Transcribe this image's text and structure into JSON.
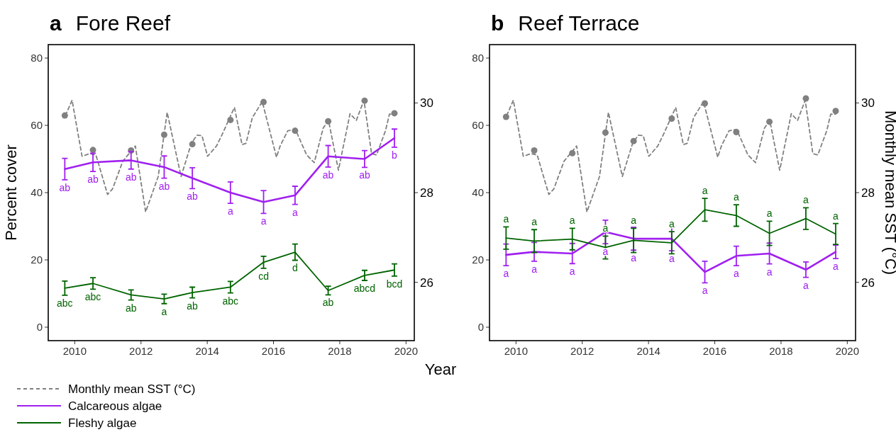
{
  "chart_data": [
    {
      "type": "line",
      "title": "a Fore Reef",
      "xlabel": "Year",
      "ylabel": "Percent cover",
      "xlim": [
        2009.2,
        2020.25
      ],
      "xticks": [
        2010,
        2012,
        2014,
        2016,
        2018,
        2020
      ],
      "ylim": [
        -4,
        84
      ],
      "yticks": [
        0,
        20,
        40,
        60,
        80
      ],
      "y2lim": [
        24.7,
        31.3
      ],
      "y2ticks": [
        26,
        28,
        30
      ],
      "grid": false,
      "legend": "bottom left",
      "x": [
        2009.7,
        2010.55,
        2011.7,
        2012.7,
        2013.55,
        2014.7,
        2015.7,
        2016.65,
        2017.65,
        2018.75,
        2019.65
      ],
      "series": [
        {
          "name": "Monthly mean SST (°C)",
          "type": "line",
          "axis": "y2",
          "color": "#808080",
          "line_style": "dashed",
          "marker": "none",
          "x": [
            2009.72,
            2009.92,
            2010.22,
            2010.45,
            2010.64,
            2010.99,
            2011.14,
            2011.45,
            2011.83,
            2012.14,
            2012.52,
            2012.79,
            2013.21,
            2013.52,
            2013.69,
            2013.84,
            2014.01,
            2014.28,
            2014.44,
            2014.82,
            2015.05,
            2015.17,
            2015.36,
            2015.66,
            2016.09,
            2016.2,
            2016.43,
            2016.66,
            2017.0,
            2017.23,
            2017.5,
            2017.66,
            2017.96,
            2018.31,
            2018.5,
            2018.73,
            2018.96,
            2019.11,
            2019.38,
            2019.5,
            2019.65
          ],
          "values": [
            29.72,
            30.06,
            28.81,
            28.87,
            28.84,
            27.96,
            28.08,
            28.7,
            29.04,
            27.57,
            28.36,
            29.79,
            28.36,
            29.1,
            29.28,
            29.27,
            28.81,
            29.04,
            29.28,
            29.9,
            29.07,
            29.1,
            29.67,
            30.03,
            28.79,
            29.04,
            29.38,
            29.41,
            28.84,
            28.67,
            29.44,
            29.61,
            28.5,
            29.76,
            29.61,
            30.06,
            28.87,
            28.84,
            29.38,
            29.75,
            29.75
          ]
        },
        {
          "type": "scatter",
          "axis": "y2",
          "color": "#808080",
          "marker": "circle",
          "values": [
            29.72,
            28.95,
            28.94,
            29.29,
            29.08,
            29.62,
            30.02,
            29.38,
            29.59,
            30.05,
            29.77
          ]
        },
        {
          "name": "Calcareous algae",
          "color": "#a020f0",
          "line_style": "solid",
          "marker": "none",
          "values": [
            47.0,
            49.0,
            49.6,
            47.6,
            44.3,
            40.0,
            37.2,
            39.2,
            50.8,
            50.0,
            56.2
          ],
          "errors": [
            3.2,
            2.7,
            2.6,
            3.3,
            3.1,
            3.2,
            3.4,
            2.7,
            3.2,
            2.5,
            2.7
          ],
          "value_labels": [
            "ab",
            "ab",
            "ab",
            "ab",
            "ab",
            "a",
            "a",
            "a",
            "ab",
            "ab",
            "b"
          ]
        },
        {
          "name": "Fleshy algae",
          "color": "#006400",
          "line_style": "solid",
          "marker": "none",
          "values": [
            11.6,
            13.0,
            9.6,
            8.4,
            10.3,
            11.9,
            19.3,
            22.3,
            10.9,
            15.4,
            17.0
          ],
          "errors": [
            2.1,
            1.7,
            1.5,
            1.4,
            1.6,
            1.7,
            1.8,
            2.4,
            1.3,
            1.5,
            1.8
          ],
          "value_labels": [
            "abc",
            "abc",
            "ab",
            "a",
            "ab",
            "abc",
            "cd",
            "d",
            "ab",
            "abcd",
            "bcd"
          ]
        }
      ]
    },
    {
      "type": "line",
      "title": "b Reef Terrace",
      "y2label": "Monthly mean SST (°C)",
      "xlim": [
        2009.2,
        2020.25
      ],
      "xticks": [
        2010,
        2012,
        2014,
        2016,
        2018,
        2020
      ],
      "ylim": [
        -4,
        84
      ],
      "yticks": [
        0,
        20,
        40,
        60,
        80
      ],
      "y2lim": [
        24.7,
        31.3
      ],
      "y2ticks": [
        26,
        28,
        30
      ],
      "grid": false,
      "x": [
        2009.7,
        2010.55,
        2011.7,
        2012.7,
        2013.55,
        2014.7,
        2015.7,
        2016.65,
        2017.65,
        2018.75,
        2019.65
      ],
      "series": [
        {
          "type": "line",
          "axis": "y2",
          "color": "#808080",
          "line_style": "dashed",
          "marker": "none",
          "x": [
            2009.72,
            2009.92,
            2010.22,
            2010.45,
            2010.64,
            2010.99,
            2011.14,
            2011.45,
            2011.83,
            2012.14,
            2012.52,
            2012.79,
            2013.21,
            2013.52,
            2013.69,
            2013.84,
            2014.01,
            2014.28,
            2014.44,
            2014.82,
            2015.05,
            2015.17,
            2015.36,
            2015.66,
            2016.09,
            2016.2,
            2016.43,
            2016.66,
            2017.0,
            2017.23,
            2017.5,
            2017.66,
            2017.96,
            2018.31,
            2018.5,
            2018.73,
            2018.96,
            2019.11,
            2019.38,
            2019.5,
            2019.65
          ],
          "values": [
            29.72,
            30.06,
            28.81,
            28.87,
            28.84,
            27.96,
            28.08,
            28.7,
            29.04,
            27.57,
            28.36,
            29.79,
            28.36,
            29.1,
            29.28,
            29.27,
            28.81,
            29.04,
            29.28,
            29.9,
            29.07,
            29.1,
            29.67,
            30.03,
            28.79,
            29.04,
            29.38,
            29.41,
            28.84,
            28.67,
            29.44,
            29.61,
            28.5,
            29.76,
            29.61,
            30.06,
            28.87,
            28.84,
            29.38,
            29.75,
            29.75
          ]
        },
        {
          "type": "scatter",
          "axis": "y2",
          "color": "#808080",
          "marker": "circle",
          "values": [
            29.69,
            28.94,
            28.88,
            29.34,
            29.15,
            29.65,
            29.99,
            29.35,
            29.58,
            30.1,
            29.82
          ]
        },
        {
          "color": "#a020f0",
          "line_style": "solid",
          "marker": "none",
          "values": [
            21.5,
            22.4,
            21.9,
            28.3,
            26.3,
            26.3,
            16.4,
            21.2,
            21.9,
            17.1,
            22.4
          ],
          "errors": [
            3.2,
            2.8,
            3.0,
            3.5,
            3.4,
            3.6,
            3.2,
            2.9,
            3.1,
            2.3,
            2.0
          ],
          "value_labels": [
            "a",
            "a",
            "a",
            "a",
            "a",
            "a",
            "a",
            "a",
            "a",
            "a",
            "a"
          ]
        },
        {
          "color": "#006400",
          "line_style": "solid",
          "marker": "none",
          "values": [
            26.5,
            25.6,
            26.2,
            23.7,
            25.8,
            25.1,
            34.9,
            33.2,
            27.9,
            32.3,
            27.7
          ],
          "errors": [
            3.3,
            3.4,
            3.2,
            3.4,
            3.6,
            3.3,
            3.4,
            3.2,
            3.6,
            3.2,
            3.1
          ],
          "value_labels": [
            "a",
            "a",
            "a",
            "a",
            "a",
            "a",
            "a",
            "a",
            "a",
            "a",
            "a"
          ]
        }
      ]
    }
  ]
}
